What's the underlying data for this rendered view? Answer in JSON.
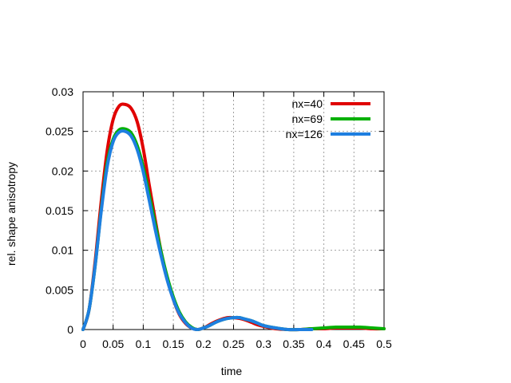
{
  "chart_data": {
    "type": "line",
    "title": "",
    "xlabel": "time",
    "ylabel": "rel. shape anisotropy",
    "xlim": [
      0,
      0.5
    ],
    "ylim": [
      0,
      0.03
    ],
    "x_ticks": [
      "0",
      "0.05",
      "0.1",
      "0.15",
      "0.2",
      "0.25",
      "0.3",
      "0.35",
      "0.4",
      "0.45",
      "0.5"
    ],
    "y_ticks": [
      "0",
      "0.005",
      "0.01",
      "0.015",
      "0.02",
      "0.025",
      "0.03"
    ],
    "grid": true,
    "legend_position": "top-right",
    "series": [
      {
        "name": "nx=40",
        "color": "#e00000",
        "x": [
          0,
          0.01,
          0.02,
          0.03,
          0.04,
          0.05,
          0.06,
          0.07,
          0.08,
          0.09,
          0.1,
          0.11,
          0.12,
          0.13,
          0.14,
          0.15,
          0.16,
          0.17,
          0.18,
          0.19,
          0.2,
          0.21,
          0.22,
          0.23,
          0.24,
          0.25,
          0.26,
          0.27,
          0.28,
          0.29,
          0.3,
          0.32,
          0.34,
          0.36,
          0.38,
          0.4,
          0.42,
          0.44,
          0.46,
          0.48,
          0.5
        ],
        "y": [
          0,
          0.0025,
          0.0085,
          0.016,
          0.0225,
          0.0265,
          0.0282,
          0.0284,
          0.0279,
          0.0262,
          0.0228,
          0.0182,
          0.0138,
          0.0097,
          0.0064,
          0.0038,
          0.0019,
          0.0008,
          0.0002,
          0.0,
          0.0002,
          0.0006,
          0.001,
          0.0013,
          0.0015,
          0.0015,
          0.0014,
          0.0012,
          0.0009,
          0.0006,
          0.0004,
          0.0001,
          0.0,
          0.0,
          0.0001,
          0.0001,
          0.0002,
          0.0002,
          0.0002,
          0.0001,
          0.0001
        ]
      },
      {
        "name": "nx=69",
        "color": "#00b000",
        "x": [
          0,
          0.01,
          0.02,
          0.03,
          0.04,
          0.05,
          0.06,
          0.07,
          0.08,
          0.09,
          0.1,
          0.11,
          0.12,
          0.13,
          0.14,
          0.15,
          0.16,
          0.17,
          0.18,
          0.19,
          0.2,
          0.21,
          0.22,
          0.23,
          0.24,
          0.25,
          0.26,
          0.27,
          0.28,
          0.29,
          0.3,
          0.32,
          0.34,
          0.36,
          0.38,
          0.4,
          0.42,
          0.44,
          0.46,
          0.48,
          0.5
        ],
        "y": [
          0,
          0.0025,
          0.008,
          0.015,
          0.021,
          0.024,
          0.0252,
          0.0253,
          0.0248,
          0.0232,
          0.0205,
          0.017,
          0.0133,
          0.0097,
          0.0066,
          0.0041,
          0.0022,
          0.001,
          0.0003,
          0.0,
          0.0002,
          0.0005,
          0.0009,
          0.0012,
          0.0014,
          0.0015,
          0.0015,
          0.0013,
          0.0011,
          0.0008,
          0.0005,
          0.0002,
          0.0,
          0.0,
          0.0001,
          0.0002,
          0.0003,
          0.0003,
          0.0003,
          0.0002,
          0.0001
        ]
      },
      {
        "name": "nx=126",
        "color": "#1e7fe0",
        "x": [
          0,
          0.01,
          0.02,
          0.03,
          0.04,
          0.05,
          0.06,
          0.07,
          0.08,
          0.09,
          0.1,
          0.11,
          0.12,
          0.13,
          0.14,
          0.15,
          0.16,
          0.17,
          0.18,
          0.19,
          0.2,
          0.21,
          0.22,
          0.23,
          0.24,
          0.25,
          0.26,
          0.27,
          0.28,
          0.29,
          0.3,
          0.32,
          0.34,
          0.36,
          0.38
        ],
        "y": [
          0,
          0.0025,
          0.008,
          0.0148,
          0.0205,
          0.0237,
          0.0249,
          0.025,
          0.0244,
          0.0227,
          0.0199,
          0.0163,
          0.0126,
          0.0092,
          0.0062,
          0.0038,
          0.002,
          0.0009,
          0.0002,
          0.0,
          0.0002,
          0.0005,
          0.0009,
          0.0012,
          0.0014,
          0.0015,
          0.0015,
          0.0013,
          0.0011,
          0.0008,
          0.0005,
          0.0002,
          0.0,
          0.0,
          0.0
        ]
      }
    ]
  }
}
